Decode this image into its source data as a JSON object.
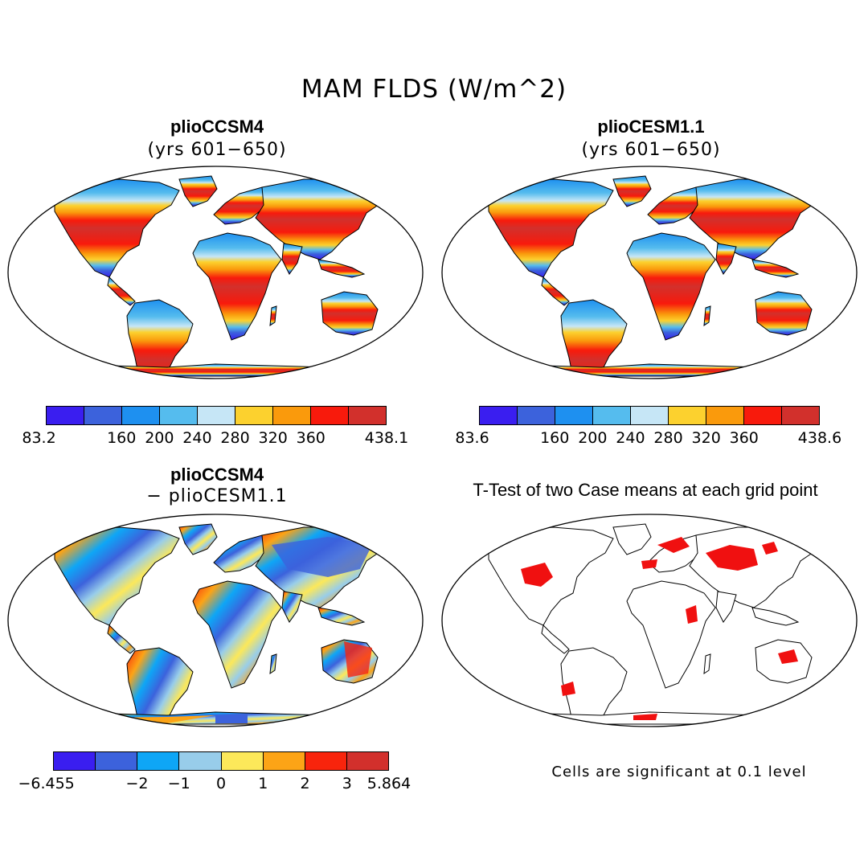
{
  "figure": {
    "title": "MAM FLDS (W/m^2)"
  },
  "panels": [
    {
      "id": "a",
      "title": "plioCCSM4",
      "subtitle": "(yrs 601−650)"
    },
    {
      "id": "b",
      "title": "plioCESM1.1",
      "subtitle": "(yrs 601−650)"
    },
    {
      "id": "c",
      "title": "plioCCSM4",
      "subtitle": "− plioCESM1.1"
    },
    {
      "id": "d",
      "title": "T-Test of two Case means at each grid point",
      "note": "Cells are significant at 0.1 level"
    }
  ],
  "colorbars": {
    "a": {
      "colors": [
        "#3a1ef0",
        "#3c62dc",
        "#1e90f0",
        "#55bcee",
        "#c6e6f6",
        "#fcd12e",
        "#fa9a0c",
        "#f81a0c",
        "#d2302c"
      ],
      "labels": [
        "83.2",
        "160",
        "200",
        "240",
        "280",
        "320",
        "360",
        "438.1"
      ]
    },
    "b": {
      "colors": [
        "#3a1ef0",
        "#3c62dc",
        "#1e90f0",
        "#55bcee",
        "#c6e6f6",
        "#fcd12e",
        "#fa9a0c",
        "#f81a0c",
        "#d2302c"
      ],
      "labels": [
        "83.6",
        "160",
        "200",
        "240",
        "280",
        "320",
        "360",
        "438.6"
      ]
    },
    "c": {
      "colors": [
        "#3a1ef0",
        "#3c62dc",
        "#0ea6f6",
        "#98cdea",
        "#fce85a",
        "#fca416",
        "#f8240c",
        "#d2302c"
      ],
      "labels": [
        "−6.455",
        "−2",
        "−1",
        "0",
        "1",
        "2",
        "3",
        "5.864"
      ]
    }
  },
  "significance_color": "#f01010"
}
